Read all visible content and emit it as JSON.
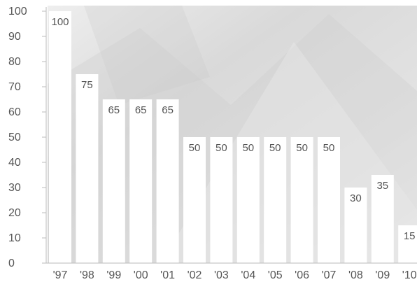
{
  "chart_data": {
    "type": "bar",
    "categories": [
      "'97",
      "'98",
      "'99",
      "'00",
      "'01",
      "'02",
      "'03",
      "'04",
      "'05",
      "'06",
      "'07",
      "'08",
      "'09",
      "'10"
    ],
    "values": [
      100,
      75,
      65,
      65,
      65,
      50,
      50,
      50,
      50,
      50,
      50,
      30,
      35,
      15
    ],
    "data_labels": [
      "100",
      "75",
      "65",
      "65",
      "65",
      "50",
      "50",
      "50",
      "50",
      "50",
      "50",
      "30",
      "35",
      "15"
    ],
    "yticks": [
      0,
      10,
      20,
      30,
      40,
      50,
      60,
      70,
      80,
      90,
      100
    ],
    "ytick_labels": [
      "0",
      "10",
      "20",
      "30",
      "40",
      "50",
      "60",
      "70",
      "80",
      "90",
      "100"
    ],
    "ylim": [
      0,
      100
    ],
    "title": "",
    "xlabel": "",
    "ylabel": "",
    "grid": false,
    "legend": "none"
  },
  "colors": {
    "bar_fill": "#ffffff",
    "background": "#d2d2d2",
    "text": "#555555",
    "axis": "#bbbbbb"
  }
}
